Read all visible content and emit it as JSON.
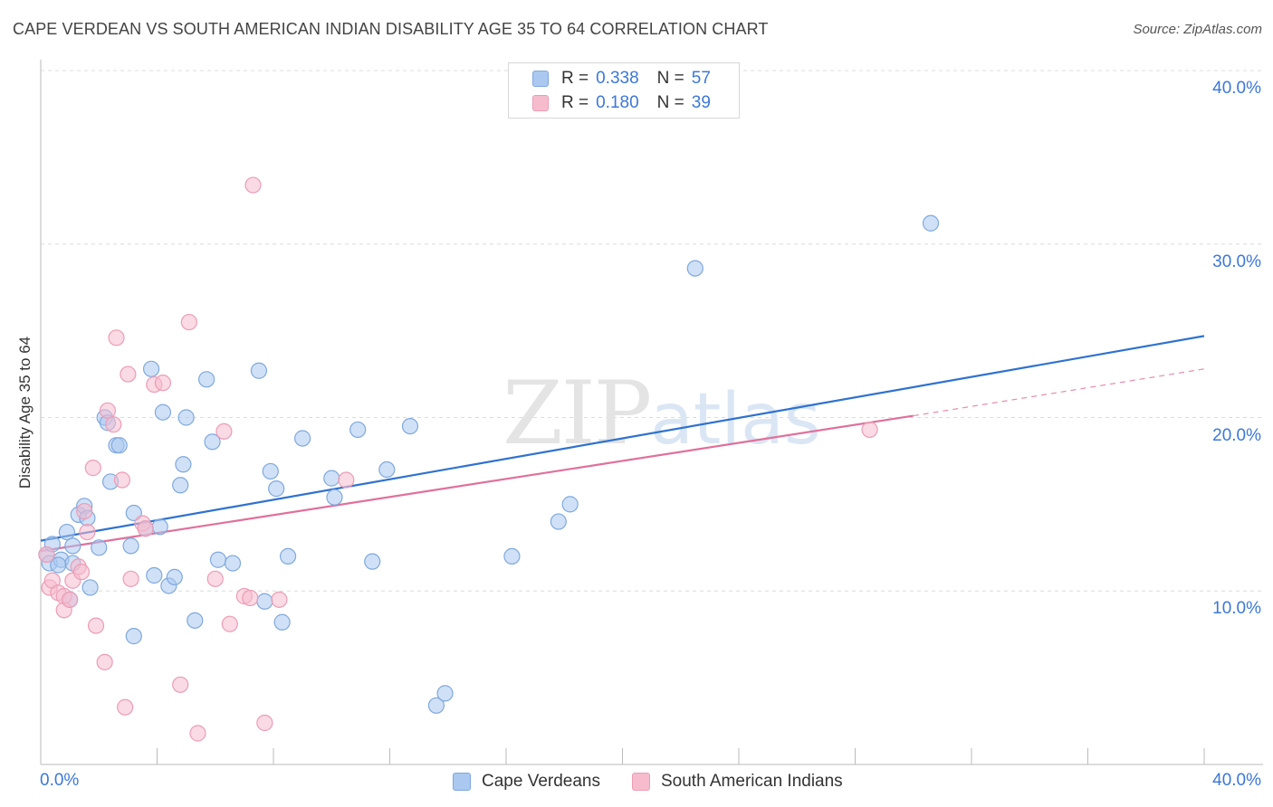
{
  "title": "CAPE VERDEAN VS SOUTH AMERICAN INDIAN DISABILITY AGE 35 TO 64 CORRELATION CHART",
  "source": "Source: ZipAtlas.com",
  "legend": {
    "rows": [
      {
        "r_label": "R =",
        "r_value": "0.338",
        "n_label": "N =",
        "n_value": "57"
      },
      {
        "r_label": "R =",
        "r_value": "0.180",
        "n_label": "N =",
        "n_value": "39"
      }
    ]
  },
  "bottom_legend": [
    "Cape Verdeans",
    "South American Indians"
  ],
  "colors": {
    "blue_fill": "#aac8f0",
    "blue_stroke": "#7fa8de",
    "blue_line": "#2f72cf",
    "pink_fill": "#f6bccd",
    "pink_stroke": "#ec9db6",
    "pink_line": "#e0709a",
    "tick_text": "#3c78d8",
    "grid": "#dcdcdc"
  },
  "chart_data": {
    "type": "scatter",
    "title": "CAPE VERDEAN VS SOUTH AMERICAN INDIAN DISABILITY AGE 35 TO 64 CORRELATION CHART",
    "xlabel": "",
    "ylabel": "Disability Age 35 to 64",
    "xlim": [
      0,
      40
    ],
    "ylim": [
      0,
      40
    ],
    "x_tick_labels": [
      "0.0%",
      "40.0%"
    ],
    "y_tick_labels": [
      "10.0%",
      "20.0%",
      "30.0%",
      "40.0%"
    ],
    "y_ticks": [
      10,
      20,
      30,
      40
    ],
    "grid": true,
    "legend_position": "top-center",
    "watermark": "ZIPatlas",
    "series": [
      {
        "name": "Cape Verdeans",
        "r": 0.338,
        "n": 57,
        "trend": [
          [
            0,
            12.9
          ],
          [
            40,
            24.7
          ]
        ],
        "points": [
          [
            0.2,
            12.1
          ],
          [
            0.3,
            11.6
          ],
          [
            0.4,
            12.7
          ],
          [
            0.7,
            11.8
          ],
          [
            0.9,
            13.4
          ],
          [
            1.0,
            9.5
          ],
          [
            1.1,
            12.6
          ],
          [
            1.3,
            14.4
          ],
          [
            1.5,
            14.9
          ],
          [
            1.6,
            14.2
          ],
          [
            1.7,
            10.2
          ],
          [
            2.0,
            12.5
          ],
          [
            2.2,
            20.0
          ],
          [
            2.3,
            19.7
          ],
          [
            2.4,
            16.3
          ],
          [
            2.6,
            18.4
          ],
          [
            2.7,
            18.4
          ],
          [
            3.1,
            12.6
          ],
          [
            3.2,
            14.5
          ],
          [
            3.2,
            7.4
          ],
          [
            3.6,
            13.6
          ],
          [
            3.8,
            22.8
          ],
          [
            3.9,
            10.9
          ],
          [
            4.1,
            13.7
          ],
          [
            4.2,
            20.3
          ],
          [
            4.4,
            10.3
          ],
          [
            4.6,
            10.8
          ],
          [
            4.8,
            16.1
          ],
          [
            4.9,
            17.3
          ],
          [
            5.0,
            20.0
          ],
          [
            5.3,
            8.3
          ],
          [
            5.7,
            22.2
          ],
          [
            5.9,
            18.6
          ],
          [
            6.1,
            11.8
          ],
          [
            6.6,
            11.6
          ],
          [
            7.5,
            22.7
          ],
          [
            7.7,
            9.4
          ],
          [
            7.9,
            16.9
          ],
          [
            8.1,
            15.9
          ],
          [
            8.3,
            8.2
          ],
          [
            8.5,
            12.0
          ],
          [
            9.0,
            18.8
          ],
          [
            10.0,
            16.5
          ],
          [
            10.1,
            15.4
          ],
          [
            10.9,
            19.3
          ],
          [
            11.4,
            11.7
          ],
          [
            11.9,
            17.0
          ],
          [
            12.7,
            19.5
          ],
          [
            13.6,
            3.4
          ],
          [
            13.9,
            4.1
          ],
          [
            16.2,
            12.0
          ],
          [
            17.8,
            14.0
          ],
          [
            18.2,
            15.0
          ],
          [
            22.5,
            28.6
          ],
          [
            30.6,
            31.2
          ],
          [
            1.1,
            11.6
          ],
          [
            0.6,
            11.5
          ]
        ]
      },
      {
        "name": "South American Indians",
        "r": 0.18,
        "n": 39,
        "trend": [
          [
            0,
            12.3
          ],
          [
            30,
            20.1
          ]
        ],
        "trend_dashed": [
          [
            30,
            20.1
          ],
          [
            40,
            22.8
          ]
        ],
        "points": [
          [
            0.2,
            12.1
          ],
          [
            0.3,
            10.2
          ],
          [
            0.4,
            10.6
          ],
          [
            0.6,
            9.9
          ],
          [
            0.8,
            9.7
          ],
          [
            0.8,
            8.9
          ],
          [
            1.0,
            9.5
          ],
          [
            1.1,
            10.6
          ],
          [
            1.3,
            11.4
          ],
          [
            1.4,
            11.1
          ],
          [
            1.5,
            14.6
          ],
          [
            1.6,
            13.4
          ],
          [
            1.8,
            17.1
          ],
          [
            1.9,
            8.0
          ],
          [
            2.2,
            5.9
          ],
          [
            2.3,
            20.4
          ],
          [
            2.5,
            19.6
          ],
          [
            2.6,
            24.6
          ],
          [
            2.8,
            16.4
          ],
          [
            2.9,
            3.3
          ],
          [
            3.0,
            22.5
          ],
          [
            3.1,
            10.7
          ],
          [
            3.5,
            13.9
          ],
          [
            3.6,
            13.6
          ],
          [
            3.9,
            21.9
          ],
          [
            4.2,
            22.0
          ],
          [
            4.8,
            4.6
          ],
          [
            5.1,
            25.5
          ],
          [
            5.4,
            1.8
          ],
          [
            6.0,
            10.7
          ],
          [
            6.3,
            19.2
          ],
          [
            6.5,
            8.1
          ],
          [
            7.0,
            9.7
          ],
          [
            7.2,
            9.6
          ],
          [
            7.3,
            33.4
          ],
          [
            7.7,
            2.4
          ],
          [
            8.2,
            9.5
          ],
          [
            10.5,
            16.4
          ],
          [
            28.5,
            19.3
          ]
        ]
      }
    ]
  }
}
